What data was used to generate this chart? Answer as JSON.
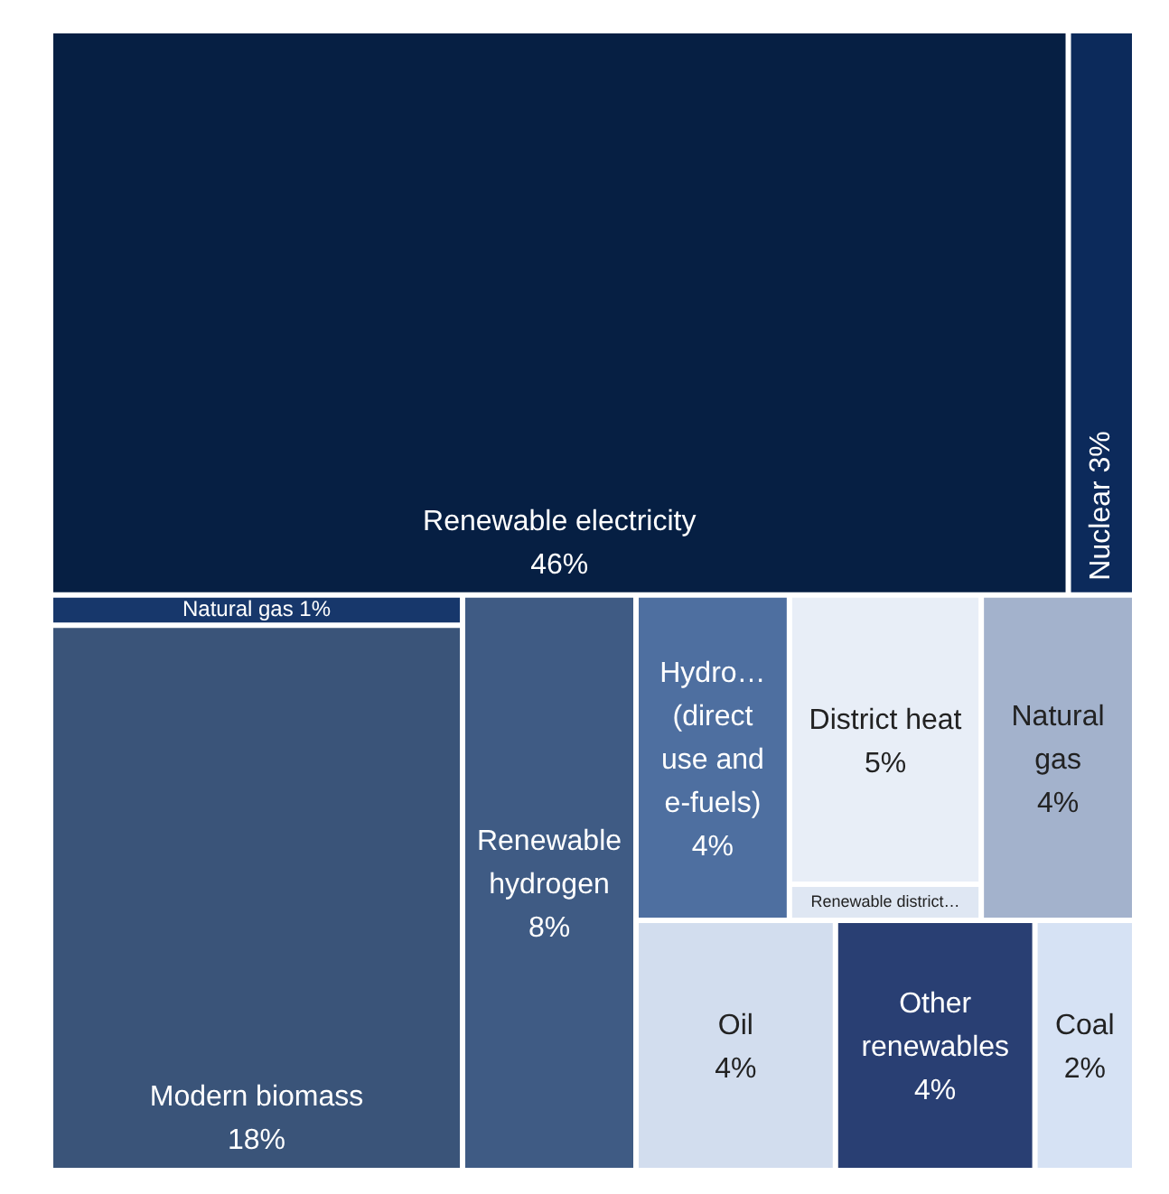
{
  "chart_data": {
    "type": "other",
    "categories": [
      "Renewable electricity",
      "Nuclear",
      "Natural gas",
      "Modern biomass",
      "Renewable hydrogen",
      "Hydro… (direct use and e-fuels)",
      "District heat",
      "Renewable district…",
      "Natural gas",
      "Oil",
      "Other renewables",
      "Coal"
    ],
    "values": [
      46,
      3,
      1,
      18,
      8,
      4,
      5,
      null,
      4,
      4,
      4,
      2
    ],
    "value_labels": [
      "46%",
      "3%",
      "1%",
      "18%",
      "8%",
      "4%",
      "5%",
      null,
      "4%",
      "4%",
      "4%",
      "2%"
    ],
    "colors": [
      "#061f43",
      "#0c2a5b",
      "#17376b",
      "#3a5479",
      "#3f5b84",
      "#4e6fa0",
      "#e8eef7",
      "#dfe7f3",
      "#a3b2cc",
      "#d2ddee",
      "#293f73",
      "#d6e2f4"
    ]
  }
}
